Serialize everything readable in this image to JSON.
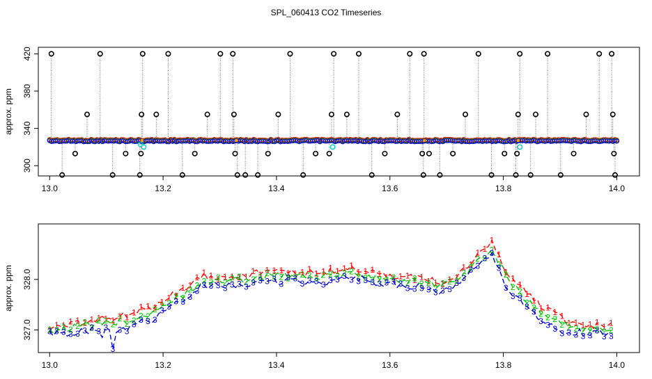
{
  "title": "SPL_060413  CO2 Timeseries",
  "colors": {
    "series1": "#ff0000",
    "series2": "#00c000",
    "series3": "#0000cc",
    "spike": "#000000",
    "cyan": "#00cccc",
    "orange": "#ff9900"
  },
  "chart_data": [
    {
      "type": "scatter",
      "ylabel": "approx. ppm",
      "xlim": [
        12.98,
        14.04
      ],
      "ylim": [
        289,
        427
      ],
      "xticks": [
        "13.0",
        "13.2",
        "13.4",
        "13.6",
        "13.8",
        "14.0"
      ],
      "xtick_values": [
        13.0,
        13.2,
        13.4,
        13.6,
        13.8,
        14.0
      ],
      "yticks": [
        "300",
        "340",
        "380",
        "420"
      ],
      "ytick_values": [
        300,
        340,
        380,
        420
      ],
      "baseline": 327,
      "spikes": [
        {
          "x": 13.003,
          "y": 420
        },
        {
          "x": 13.022,
          "y": 290
        },
        {
          "x": 13.045,
          "y": 313
        },
        {
          "x": 13.066,
          "y": 355
        },
        {
          "x": 13.089,
          "y": 420
        },
        {
          "x": 13.111,
          "y": 290
        },
        {
          "x": 13.134,
          "y": 313
        },
        {
          "x": 13.159,
          "y": 290
        },
        {
          "x": 13.161,
          "y": 313
        },
        {
          "x": 13.162,
          "y": 355
        },
        {
          "x": 13.164,
          "y": 420
        },
        {
          "x": 13.188,
          "y": 355
        },
        {
          "x": 13.209,
          "y": 420
        },
        {
          "x": 13.234,
          "y": 290
        },
        {
          "x": 13.256,
          "y": 313
        },
        {
          "x": 13.278,
          "y": 355
        },
        {
          "x": 13.301,
          "y": 420
        },
        {
          "x": 13.323,
          "y": 420
        },
        {
          "x": 13.325,
          "y": 355
        },
        {
          "x": 13.327,
          "y": 313
        },
        {
          "x": 13.331,
          "y": 290
        },
        {
          "x": 13.345,
          "y": 290
        },
        {
          "x": 13.367,
          "y": 290
        },
        {
          "x": 13.385,
          "y": 313
        },
        {
          "x": 13.403,
          "y": 355
        },
        {
          "x": 13.424,
          "y": 420
        },
        {
          "x": 13.447,
          "y": 290
        },
        {
          "x": 13.469,
          "y": 313
        },
        {
          "x": 13.493,
          "y": 313
        },
        {
          "x": 13.497,
          "y": 355
        },
        {
          "x": 13.501,
          "y": 420
        },
        {
          "x": 13.524,
          "y": 355
        },
        {
          "x": 13.545,
          "y": 420
        },
        {
          "x": 13.568,
          "y": 290
        },
        {
          "x": 13.591,
          "y": 313
        },
        {
          "x": 13.613,
          "y": 355
        },
        {
          "x": 13.635,
          "y": 420
        },
        {
          "x": 13.657,
          "y": 313
        },
        {
          "x": 13.659,
          "y": 290
        },
        {
          "x": 13.66,
          "y": 420
        },
        {
          "x": 13.669,
          "y": 313
        },
        {
          "x": 13.688,
          "y": 290
        },
        {
          "x": 13.711,
          "y": 313
        },
        {
          "x": 13.733,
          "y": 355
        },
        {
          "x": 13.756,
          "y": 420
        },
        {
          "x": 13.779,
          "y": 290
        },
        {
          "x": 13.802,
          "y": 313
        },
        {
          "x": 13.822,
          "y": 290
        },
        {
          "x": 13.824,
          "y": 313
        },
        {
          "x": 13.826,
          "y": 355
        },
        {
          "x": 13.829,
          "y": 420
        },
        {
          "x": 13.848,
          "y": 290
        },
        {
          "x": 13.857,
          "y": 355
        },
        {
          "x": 13.878,
          "y": 420
        },
        {
          "x": 13.901,
          "y": 290
        },
        {
          "x": 13.924,
          "y": 313
        },
        {
          "x": 13.946,
          "y": 355
        },
        {
          "x": 13.969,
          "y": 420
        },
        {
          "x": 13.991,
          "y": 420
        },
        {
          "x": 13.993,
          "y": 355
        },
        {
          "x": 13.995,
          "y": 313
        },
        {
          "x": 13.997,
          "y": 290
        }
      ],
      "cyan_points": [
        {
          "x": 13.16,
          "y": 323
        },
        {
          "x": 13.166,
          "y": 320
        },
        {
          "x": 13.499,
          "y": 320
        },
        {
          "x": 13.829,
          "y": 320
        }
      ]
    },
    {
      "type": "line",
      "ylabel": "approx. ppm",
      "xlim": [
        12.98,
        14.04
      ],
      "ylim": [
        326.55,
        329.1
      ],
      "xticks": [
        "13.0",
        "13.2",
        "13.4",
        "13.6",
        "13.8",
        "14.0"
      ],
      "xtick_values": [
        13.0,
        13.2,
        13.4,
        13.6,
        13.8,
        14.0
      ],
      "yticks": [
        "327.0",
        "328.0"
      ],
      "ytick_values": [
        327.0,
        328.0
      ],
      "x": [
        13.0,
        13.03,
        13.06,
        13.09,
        13.12,
        13.15,
        13.18,
        13.21,
        13.24,
        13.27,
        13.3,
        13.33,
        13.36,
        13.39,
        13.42,
        13.45,
        13.48,
        13.51,
        13.54,
        13.57,
        13.6,
        13.63,
        13.66,
        13.69,
        13.72,
        13.75,
        13.78,
        13.81,
        13.84,
        13.87,
        13.9,
        13.93,
        13.96,
        13.99
      ],
      "series": [
        {
          "name": "1",
          "values": [
            327.05,
            327.08,
            327.15,
            327.22,
            327.25,
            327.35,
            327.45,
            327.65,
            327.85,
            328.08,
            328.06,
            328.08,
            328.12,
            328.15,
            328.18,
            328.15,
            328.1,
            328.22,
            328.2,
            328.15,
            328.05,
            328.05,
            328.0,
            327.95,
            328.1,
            328.4,
            328.75,
            328.05,
            327.75,
            327.45,
            327.25,
            327.12,
            327.08,
            327.12
          ]
        },
        {
          "name": "2",
          "values": [
            327.0,
            327.03,
            327.08,
            327.12,
            327.15,
            327.22,
            327.32,
            327.5,
            327.72,
            327.98,
            327.98,
            327.98,
            328.03,
            328.07,
            328.08,
            328.05,
            328.02,
            328.12,
            328.12,
            328.05,
            327.98,
            327.98,
            327.92,
            327.85,
            328.0,
            328.3,
            328.6,
            327.95,
            327.6,
            327.3,
            327.12,
            327.05,
            327.0,
            327.05
          ]
        },
        {
          "name": "3",
          "values": [
            326.92,
            326.92,
            326.98,
            327.0,
            326.95,
            327.1,
            327.2,
            327.4,
            327.62,
            327.88,
            327.88,
            327.85,
            327.92,
            327.95,
            327.98,
            327.95,
            327.92,
            328.05,
            328.05,
            327.92,
            327.9,
            327.88,
            327.82,
            327.75,
            327.9,
            328.2,
            328.5,
            327.75,
            327.45,
            327.15,
            326.98,
            326.95,
            326.92,
            326.92
          ]
        }
      ]
    }
  ]
}
